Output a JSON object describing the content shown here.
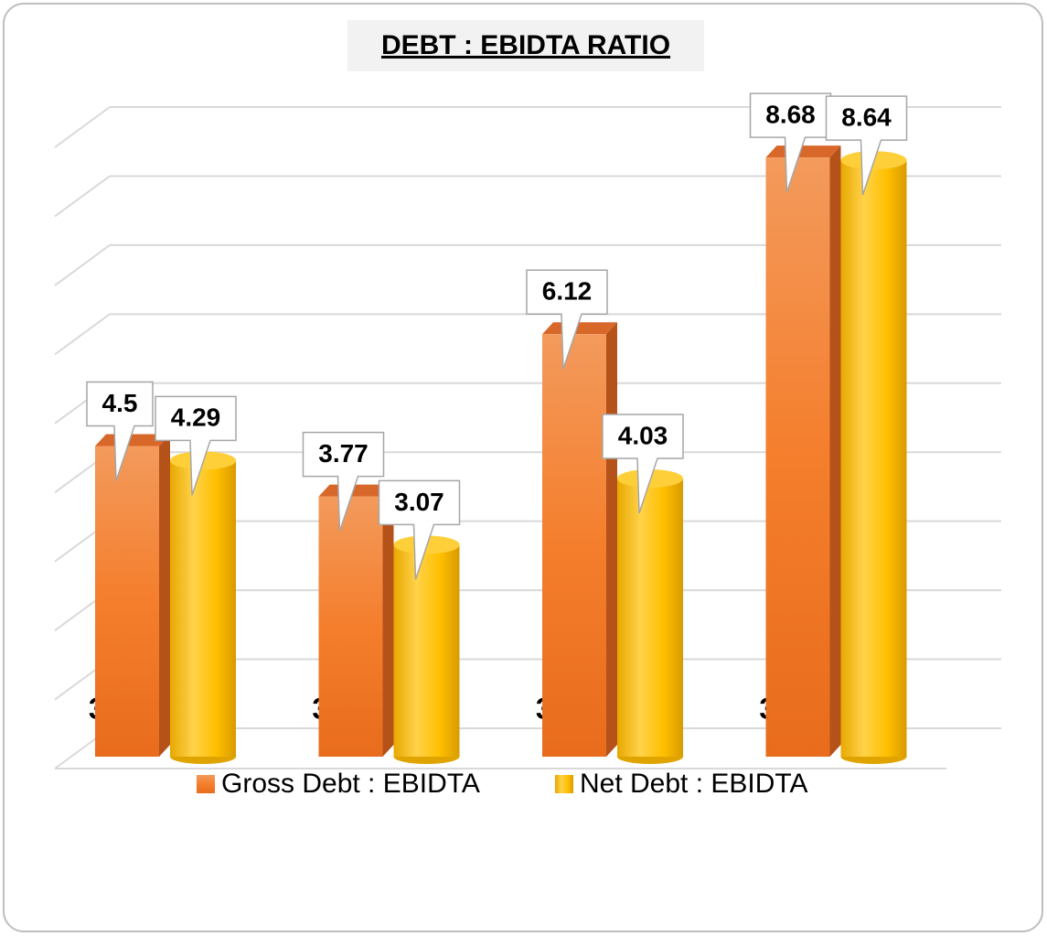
{
  "chart_data": {
    "type": "bar3d",
    "title": "DEBT : EBIDTA RATIO",
    "categories": [
      "31.03.2020",
      "31.03.2021",
      "31.03.2021",
      "31.03.2021"
    ],
    "series": [
      {
        "name": "Gross Debt : EBIDTA",
        "color": "#f07f2a",
        "values": [
          4.5,
          3.77,
          6.12,
          8.68
        ]
      },
      {
        "name": "Net Debt : EBIDTA",
        "color": "#ffc000",
        "values": [
          4.29,
          3.07,
          4.03,
          8.64
        ]
      }
    ],
    "ylim": [
      0,
      9
    ],
    "yticks": [
      0,
      1,
      2,
      3,
      4,
      5,
      6,
      7,
      8,
      9
    ],
    "grid": true,
    "legend": "bottom"
  }
}
